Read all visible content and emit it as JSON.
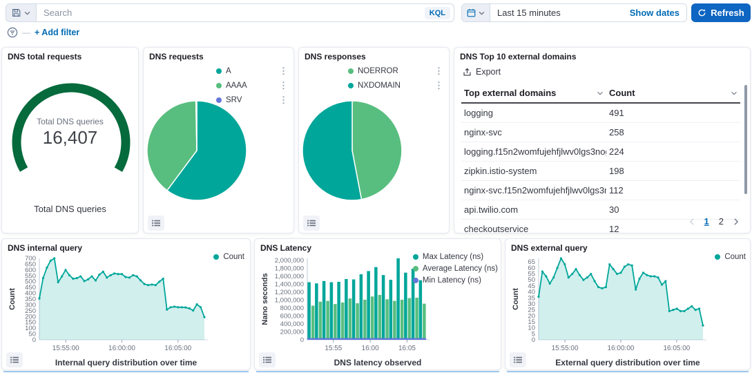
{
  "colors": {
    "teal": "#00A69A",
    "green": "#58BE7F",
    "purple": "#6577D9",
    "gauge_green": "#056A3C",
    "link_blue": "#006BB4",
    "refresh_blue": "#0E65C2"
  },
  "topbar": {
    "search_placeholder": "Search",
    "kql_label": "KQL",
    "time_range": "Last 15 minutes",
    "show_dates_label": "Show dates",
    "refresh_label": "Refresh"
  },
  "filter_bar": {
    "add_filter_label": "+ Add filter"
  },
  "panels": {
    "total_requests": {
      "title": "DNS total requests",
      "center_label": "Total DNS queries",
      "value": "16,407",
      "bottom_label": "Total DNS queries"
    },
    "requests": {
      "title": "DNS requests"
    },
    "responses": {
      "title": "DNS responses"
    },
    "top_domains": {
      "title": "DNS Top 10 external domains",
      "export_label": "Export",
      "columns": [
        "Top external domains",
        "Count"
      ],
      "rows": [
        [
          "logging",
          "491"
        ],
        [
          "nginx-svc",
          "258"
        ],
        [
          "logging.f15n2womfujehfjlwv0lgs3nog....",
          "224"
        ],
        [
          "zipkin.istio-system",
          "198"
        ],
        [
          "nginx-svc.f15n2womfujehfjlwv0lgs3no...",
          "112"
        ],
        [
          "api.twilio.com",
          "30"
        ],
        [
          "checkoutservice",
          "12"
        ]
      ],
      "pagination": {
        "pages": [
          "1",
          "2"
        ],
        "active": "1"
      }
    },
    "internal_query": {
      "title": "DNS internal query"
    },
    "latency": {
      "title": "DNS Latency"
    },
    "external_query": {
      "title": "DNS external query"
    }
  },
  "chart_data": [
    {
      "id": "gauge-total",
      "type": "gauge",
      "title": "DNS total requests",
      "value": 16407,
      "display_value": "16,407",
      "label": "Total DNS queries",
      "arc_degrees": 240,
      "fill_fraction": 1,
      "color": "#056A3C"
    },
    {
      "id": "pie-requests",
      "type": "pie",
      "title": "DNS requests",
      "slices": [
        {
          "label": "A",
          "percent": 60.2,
          "color": "#00A69A"
        },
        {
          "label": "AAAA",
          "percent": 39.5,
          "color": "#58BE7F"
        },
        {
          "label": "SRV",
          "percent": 0.3,
          "color": "#6577D9"
        }
      ]
    },
    {
      "id": "pie-responses",
      "type": "pie",
      "title": "DNS responses",
      "slices": [
        {
          "label": "NOERROR",
          "percent": 47,
          "color": "#58BE7F"
        },
        {
          "label": "NXDOMAIN",
          "percent": 53,
          "color": "#00A69A"
        }
      ]
    },
    {
      "id": "area-internal",
      "type": "area",
      "title": "DNS internal query",
      "ylabel": "Count",
      "xlabel": "Internal query distribution over time",
      "ylim": [
        0,
        700
      ],
      "ystep": 50,
      "ytick_max": 700,
      "x_ticks": [
        {
          "f": 0.16,
          "label": "15:55:00"
        },
        {
          "f": 0.5,
          "label": "16:00:00"
        },
        {
          "f": 0.84,
          "label": "16:05:00"
        }
      ],
      "legend": [
        {
          "label": "Count",
          "color": "#00A69A"
        }
      ],
      "color": "#00A69A",
      "values": [
        355,
        530,
        620,
        680,
        700,
        495,
        545,
        600,
        555,
        525,
        530,
        545,
        505,
        520,
        545,
        510,
        560,
        585,
        535,
        555,
        570,
        565,
        565,
        540,
        535,
        555,
        545,
        510,
        480,
        470,
        475,
        470,
        500,
        525,
        260,
        280,
        285,
        280,
        280,
        278,
        270,
        252,
        305,
        280,
        195
      ]
    },
    {
      "id": "bars-latency",
      "type": "bars",
      "title": "DNS Latency",
      "ylabel": "Nano seconds",
      "xlabel": "DNS latency observed",
      "ylim": [
        0,
        2050000
      ],
      "ystep": 200000,
      "ytick_max": 2000000,
      "tick_format": "comma",
      "x_ticks": [
        {
          "f": 0.22,
          "label": "15:55"
        },
        {
          "f": 0.53,
          "label": "16:00"
        },
        {
          "f": 0.84,
          "label": "16:05"
        }
      ],
      "legend": [
        {
          "label": "Max Latency (ns)",
          "color": "#00A69A"
        },
        {
          "label": "Average Latency (ns)",
          "color": "#58BE7F"
        },
        {
          "label": "Min Latency (ns)",
          "color": "#6577D9"
        }
      ],
      "series": [
        {
          "name": "Max Latency (ns)",
          "color": "#00A69A",
          "values": [
            1450000,
            1420000,
            1480000,
            1450000,
            1460000,
            1530000,
            1520000,
            1650000,
            1730000,
            1830000,
            1630000,
            1510000,
            2050000,
            1690000,
            1790000,
            1500000
          ]
        },
        {
          "name": "Average Latency (ns)",
          "color": "#58BE7F",
          "values": [
            860000,
            960000,
            980000,
            900000,
            940000,
            1040000,
            920000,
            1010000,
            1090000,
            1130000,
            1020000,
            980000,
            1010000,
            1050000,
            1060000,
            910000
          ]
        },
        {
          "name": "Min Latency (ns)",
          "color": "#6577D9",
          "values": [
            20000,
            20000,
            20000,
            20000,
            20000,
            20000,
            20000,
            20000,
            20000,
            20000,
            20000,
            20000,
            20000,
            20000,
            20000,
            20000
          ]
        }
      ]
    },
    {
      "id": "area-external",
      "type": "area",
      "title": "DNS external query",
      "ylabel": "Count",
      "xlabel": "External query distribution over time",
      "ylim": [
        0,
        68
      ],
      "ystep": 5,
      "ytick_max": 65,
      "x_ticks": [
        {
          "f": 0.16,
          "label": "15:55:00"
        },
        {
          "f": 0.5,
          "label": "16:00:00"
        },
        {
          "f": 0.84,
          "label": "16:05:00"
        }
      ],
      "legend": [
        {
          "label": "Count",
          "color": "#00A69A"
        }
      ],
      "color": "#00A69A",
      "values": [
        36,
        57,
        53,
        47,
        52,
        60,
        68,
        63,
        52,
        55,
        59,
        54,
        50,
        52,
        55,
        49,
        44,
        43,
        44,
        63,
        59,
        55,
        56,
        61,
        63,
        62,
        42,
        51,
        56,
        54,
        53,
        53,
        52,
        46,
        49,
        24,
        25,
        26,
        24,
        24,
        26,
        28,
        25,
        26,
        12
      ]
    }
  ]
}
